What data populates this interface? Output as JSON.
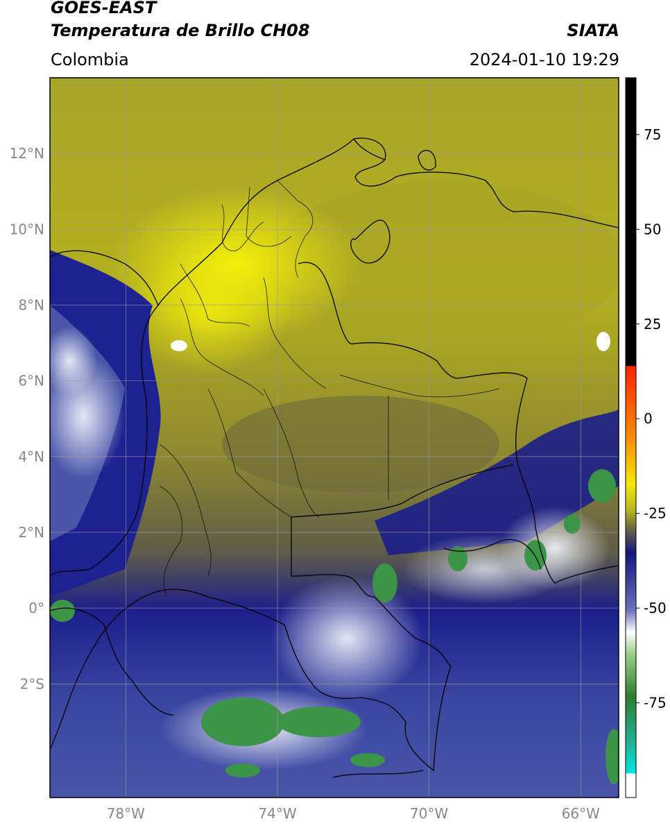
{
  "header": {
    "title_line1": "GOES-EAST",
    "title_line2": "Temperatura de Brillo CH08",
    "region": "Colombia",
    "brand": "SIATA",
    "timestamp": "2024-01-10 19:29"
  },
  "map": {
    "lon_range": [
      -80,
      -65
    ],
    "lat_range": [
      -5,
      14
    ],
    "lon_ticks": [
      {
        "value": -78,
        "label": "78°W"
      },
      {
        "value": -74,
        "label": "74°W"
      },
      {
        "value": -70,
        "label": "70°W"
      },
      {
        "value": -66,
        "label": "66°W"
      }
    ],
    "lat_ticks": [
      {
        "value": 12,
        "label": "12°N"
      },
      {
        "value": 10,
        "label": "10°N"
      },
      {
        "value": 8,
        "label": "8°N"
      },
      {
        "value": 6,
        "label": "6°N"
      },
      {
        "value": 4,
        "label": "4°N"
      },
      {
        "value": 2,
        "label": "2°N"
      },
      {
        "value": 0,
        "label": "0°"
      },
      {
        "value": -2,
        "label": "2°S"
      }
    ],
    "colors": {
      "yellow_warm": "#f2ee0a",
      "yellow_olive": "#b8b820",
      "olive_dark": "#7d7a32",
      "navy": "#1c1e8a",
      "blue_cold": "#4a55a8",
      "white_cloud": "#e8ebf6",
      "green_core": "#3b9448",
      "border": "#000000",
      "grid": "#9a9a9a"
    }
  },
  "colorbar": {
    "range": [
      -100,
      90
    ],
    "ticks": [
      {
        "value": 75,
        "label": "75"
      },
      {
        "value": 50,
        "label": "50"
      },
      {
        "value": 25,
        "label": "25"
      },
      {
        "value": 0,
        "label": "0"
      },
      {
        "value": -25,
        "label": "-25"
      },
      {
        "value": -50,
        "label": "-50"
      },
      {
        "value": -75,
        "label": "-75"
      }
    ]
  }
}
